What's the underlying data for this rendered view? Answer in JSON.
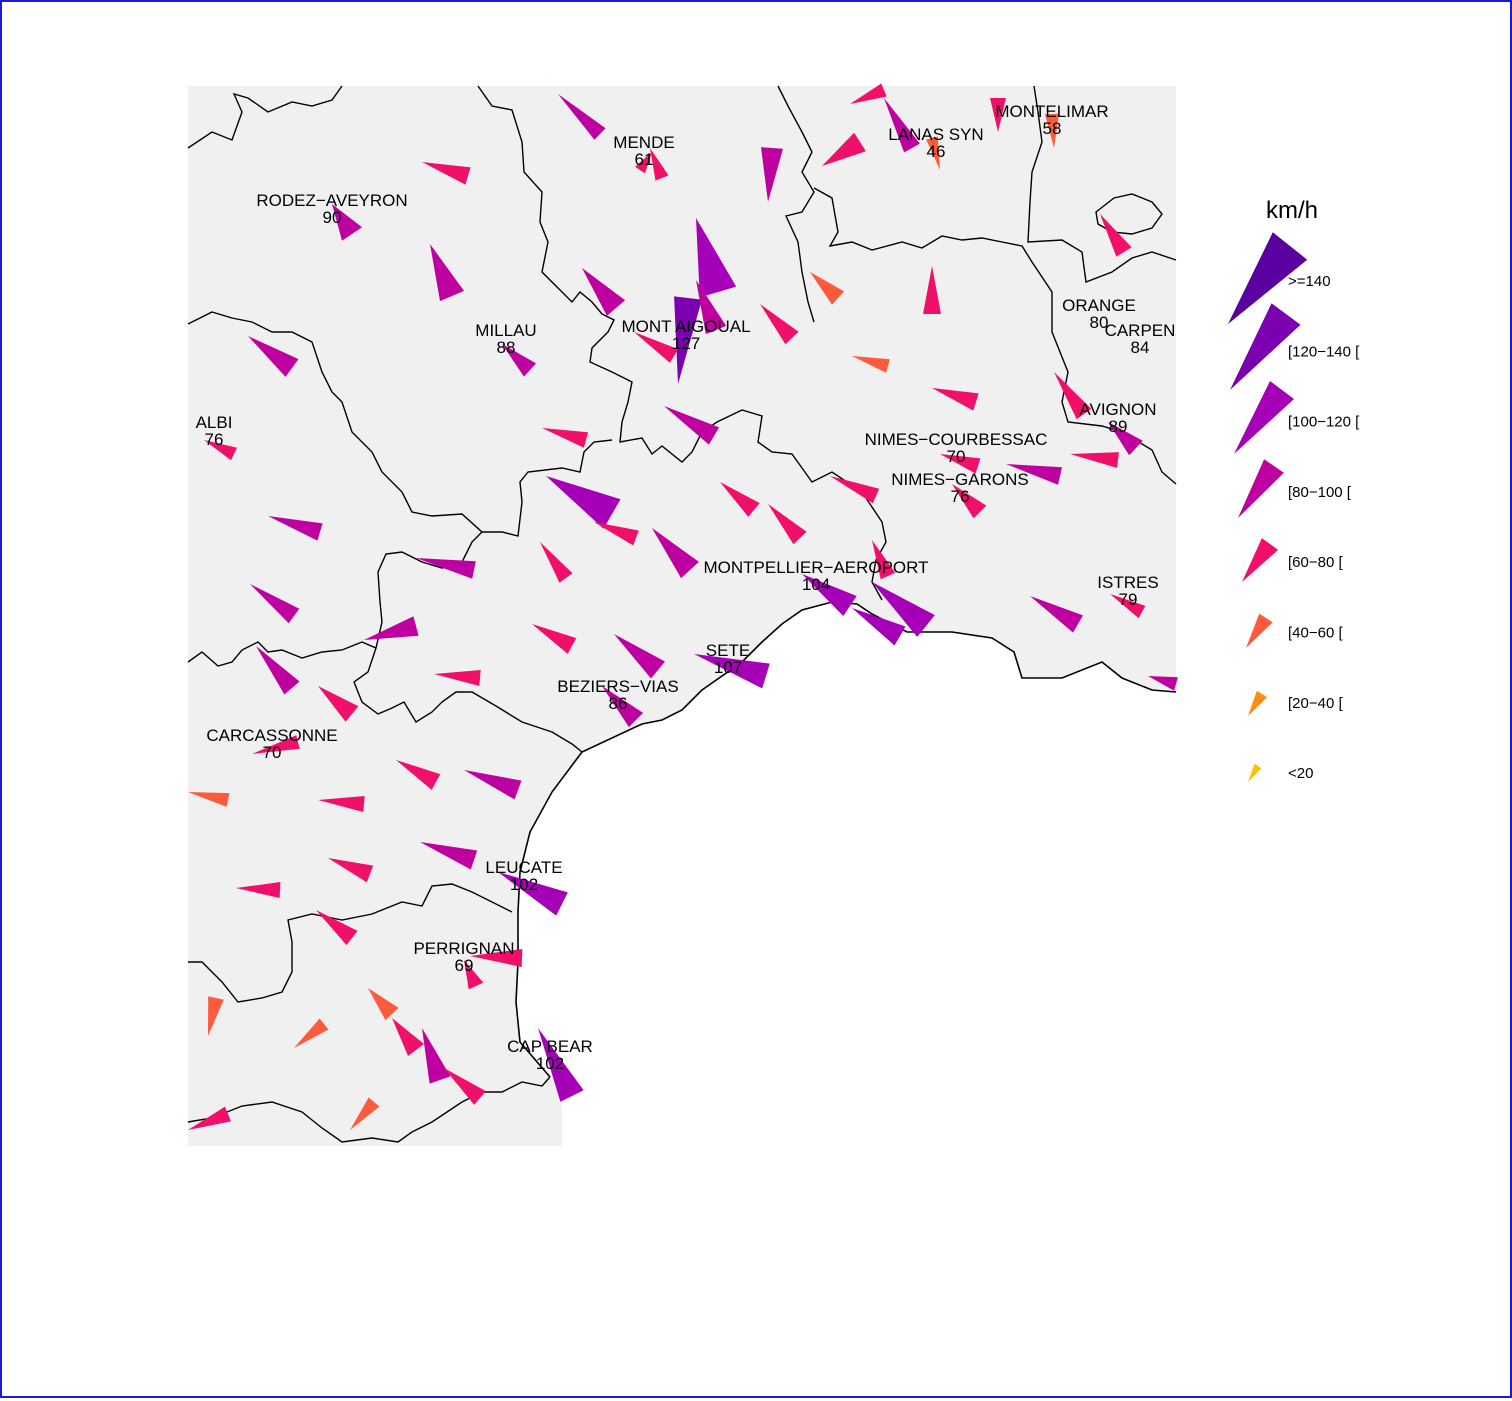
{
  "map": {
    "legend": {
      "title": "km/h",
      "classes": [
        {
          "label": ">=140",
          "color": "#5a00a0"
        },
        {
          "label": "[120−140 [",
          "color": "#7a00b0"
        },
        {
          "label": "[100−120 [",
          "color": "#a500b8"
        },
        {
          "label": "[80−100 [",
          "color": "#bf00a0"
        },
        {
          "label": "[60−80 [",
          "color": "#f0106a"
        },
        {
          "label": "[40−60 [",
          "color": "#ff5a3c"
        },
        {
          "label": "[20−40 [",
          "color": "#ff8c14"
        },
        {
          "label": "<20",
          "color": "#ffc000"
        }
      ]
    },
    "stations": [
      {
        "name": "MENDE",
        "value": "61"
      },
      {
        "name": "LANAS SYN",
        "value": "46"
      },
      {
        "name": "MONTELIMAR",
        "value": "58"
      },
      {
        "name": "RODEZ−AVEYRON",
        "value": "90"
      },
      {
        "name": "MILLAU",
        "value": "88"
      },
      {
        "name": "MONT AIGOUAL",
        "value": "127"
      },
      {
        "name": "ORANGE",
        "value": "80"
      },
      {
        "name": "CARPEN",
        "value": "84"
      },
      {
        "name": "ALBI",
        "value": "76"
      },
      {
        "name": "AVIGNON",
        "value": "89"
      },
      {
        "name": "NIMES−COURBESSAC",
        "value": "70"
      },
      {
        "name": "NIMES−GARONS",
        "value": "76"
      },
      {
        "name": "MONTPELLIER−AEROPORT",
        "value": "104"
      },
      {
        "name": "ISTRES",
        "value": "79"
      },
      {
        "name": "SETE",
        "value": "107"
      },
      {
        "name": "BEZIERS−VIAS",
        "value": "86"
      },
      {
        "name": "CARCASSONNE",
        "value": "70"
      },
      {
        "name": "LEUCATE",
        "value": "102"
      },
      {
        "name": "PERRIGNAN",
        "value": "69"
      },
      {
        "name": "CAP BEAR",
        "value": "102"
      }
    ]
  }
}
